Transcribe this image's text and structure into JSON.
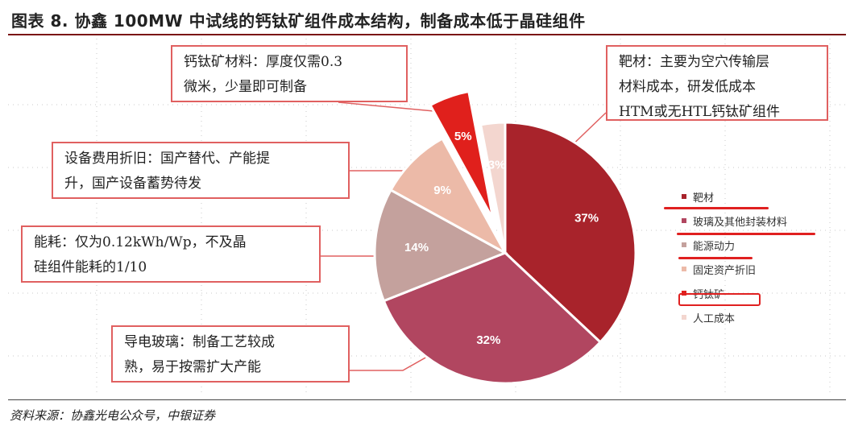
{
  "header": {
    "title": "图表 8. 协鑫 100MW 中试线的钙钛矿组件成本结构，制备成本低于晶硅组件"
  },
  "footer": {
    "source": "资料来源：协鑫光电公众号，中银证券"
  },
  "callouts": {
    "perovskite_material": [
      "钙钛矿材料：厚度仅需0.3",
      "微米，少量即可制备"
    ],
    "target_material": [
      "靶材：主要为空穴传输层",
      "材料成本，研发低成本",
      "HTM或无HTL钙钛矿组件"
    ],
    "equipment": [
      "设备费用折旧：国产替代、产能提",
      "升，国产设备蓄势待发"
    ],
    "energy": [
      "能耗：仅为0.12kWh/Wp，不及晶",
      "硅组件能耗的1/10"
    ],
    "glass": [
      "导电玻璃：制备工艺较成",
      "熟，易于按需扩大产能"
    ]
  },
  "chart_data": {
    "type": "pie",
    "slices": [
      {
        "name": "靶材",
        "value": 37,
        "label": "37%",
        "color": "#a8232b",
        "exploded": false
      },
      {
        "name": "玻璃及其他封装材料",
        "value": 32,
        "label": "32%",
        "color": "#b14660",
        "exploded": false
      },
      {
        "name": "能源动力",
        "value": 14,
        "label": "14%",
        "color": "#c4a19d",
        "exploded": false
      },
      {
        "name": "固定资产折旧",
        "value": 9,
        "label": "9%",
        "color": "#ecbaa8",
        "exploded": false
      },
      {
        "name": "钙钛矿",
        "value": 5,
        "label": "5%",
        "color": "#e0201c",
        "exploded": true
      },
      {
        "name": "人工成本",
        "value": 3,
        "label": "3%",
        "color": "#f3d6cf",
        "exploded": false
      }
    ],
    "start": "12 o'clock",
    "direction": "clockwise",
    "legend_position": "right"
  },
  "colors": {
    "accent": "#7a1515",
    "highlight": "#e02020",
    "callout_border": "#e06060"
  }
}
